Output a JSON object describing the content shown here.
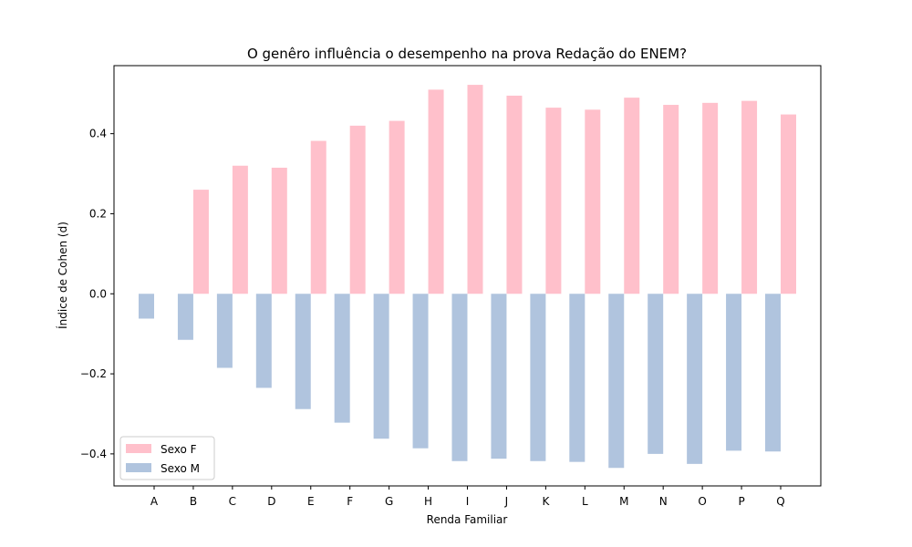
{
  "chart_data": {
    "type": "bar",
    "title": "O genêro influência o desempenho na prova Redação do ENEM?",
    "xlabel": "Renda Familiar",
    "ylabel": "Índice de Cohen (d)",
    "categories": [
      "A",
      "B",
      "C",
      "D",
      "E",
      "F",
      "G",
      "H",
      "I",
      "J",
      "K",
      "L",
      "M",
      "N",
      "O",
      "P",
      "Q"
    ],
    "series": [
      {
        "name": "Sexo F",
        "color": "#ffc0cb",
        "values": [
          null,
          0.26,
          0.32,
          0.315,
          0.382,
          0.42,
          0.432,
          0.51,
          0.522,
          0.495,
          0.465,
          0.46,
          0.49,
          0.472,
          0.477,
          0.482,
          0.448
        ]
      },
      {
        "name": "Sexo M",
        "color": "#b0c4de",
        "values": [
          -0.062,
          -0.115,
          -0.185,
          -0.235,
          -0.288,
          -0.322,
          -0.362,
          -0.386,
          -0.418,
          -0.412,
          -0.418,
          -0.42,
          -0.435,
          -0.4,
          -0.425,
          -0.392,
          -0.394
        ]
      }
    ],
    "ylim": [
      -0.48,
      0.57
    ],
    "yticks": [
      -0.4,
      -0.2,
      0.0,
      0.2,
      0.4
    ],
    "ytick_labels": [
      "−0.4",
      "−0.2",
      "0.0",
      "0.2",
      "0.4"
    ],
    "legend_position": "lower-left",
    "grid": false
  }
}
